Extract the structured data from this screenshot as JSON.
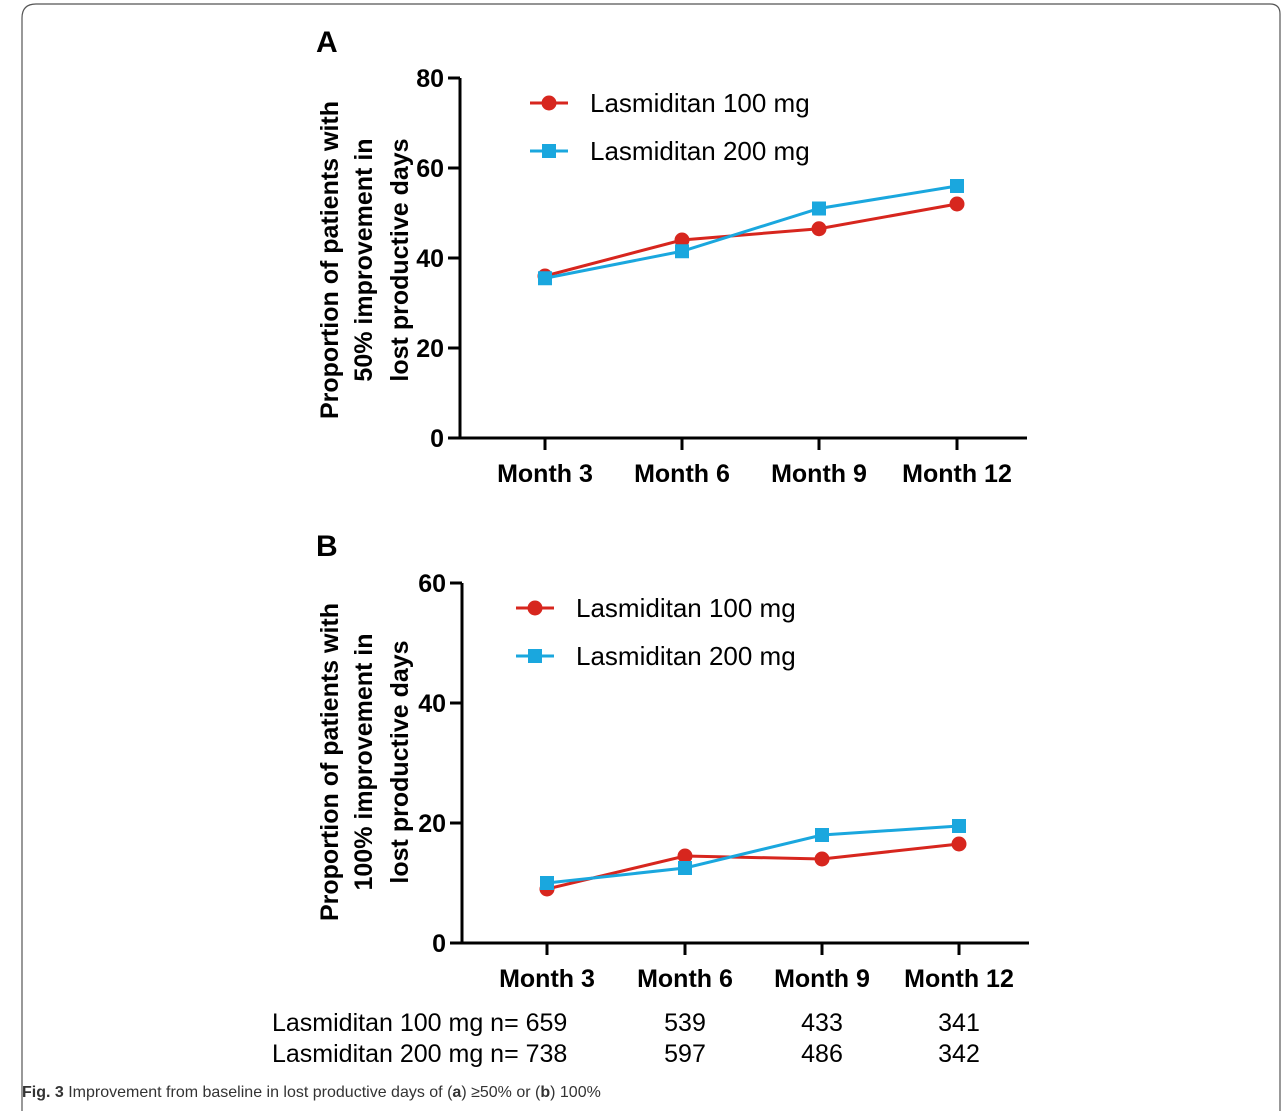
{
  "chart_data": [
    {
      "panel": "A",
      "type": "line",
      "ylabel_lines": [
        "Proportion of patients with",
        "50% improvement in",
        "lost productive days"
      ],
      "categories": [
        "Month 3",
        "Month 6",
        "Month 9",
        "Month 12"
      ],
      "ylim": [
        0,
        80
      ],
      "yticks": [
        "0",
        "20",
        "40",
        "60",
        "80"
      ],
      "legend_position": "top-left",
      "series": [
        {
          "name": "Lasmiditan 100 mg",
          "color": "#d7261e",
          "marker": "circle",
          "values": [
            36,
            44,
            46.5,
            52
          ]
        },
        {
          "name": "Lasmiditan 200 mg",
          "color": "#1aa7de",
          "marker": "square",
          "values": [
            35.5,
            41.5,
            51,
            56
          ]
        }
      ]
    },
    {
      "panel": "B",
      "type": "line",
      "ylabel_lines": [
        "Proportion of patients with",
        "100% improvement in",
        "lost productive days"
      ],
      "categories": [
        "Month 3",
        "Month 6",
        "Month 9",
        "Month 12"
      ],
      "ylim": [
        0,
        60
      ],
      "yticks": [
        "0",
        "20",
        "40",
        "60"
      ],
      "legend_position": "top-left",
      "series": [
        {
          "name": "Lasmiditan 100 mg",
          "color": "#d7261e",
          "marker": "circle",
          "values": [
            9,
            14.5,
            14,
            16.5
          ]
        },
        {
          "name": "Lasmiditan 200 mg",
          "color": "#1aa7de",
          "marker": "square",
          "values": [
            10,
            12.5,
            18,
            19.5
          ]
        }
      ]
    }
  ],
  "n_table": [
    {
      "label": "Lasmiditan 100 mg n= 659",
      "values": [
        "539",
        "433",
        "341"
      ]
    },
    {
      "label": "Lasmiditan 200 mg n= 738",
      "values": [
        "597",
        "486",
        "342"
      ]
    }
  ],
  "caption": {
    "fig": "Fig. 3",
    "t1": " Improvement from baseline in lost productive days of (",
    "a": "a",
    "t2": ") ≥50% or (",
    "b": "b",
    "t3": ") 100%"
  }
}
